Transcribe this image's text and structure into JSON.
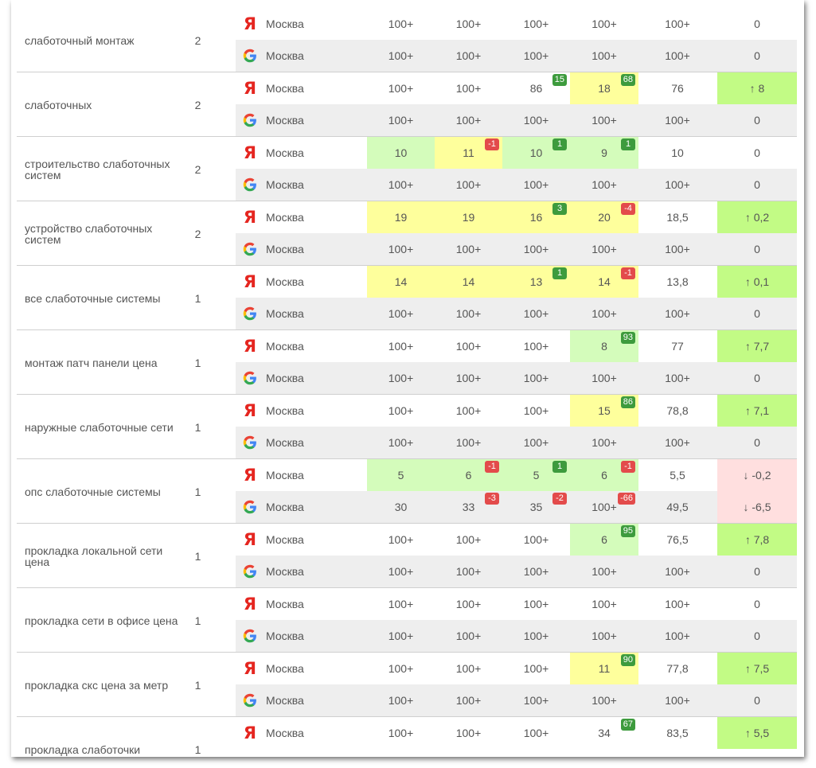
{
  "colors": {
    "yellow_cell": "#feff9c",
    "light_green_cell": "#d4fcbb",
    "green_cell": "#c2fb85",
    "pink_cell": "#ffdfdf",
    "badge_up": "#3d9b3d",
    "badge_down": "#e34b4b",
    "yandex_red": "#e52620"
  },
  "engines": {
    "yandex": {
      "icon": "yandex-logo-icon",
      "glyph": "Я"
    },
    "google": {
      "icon": "google-logo-icon"
    }
  },
  "rows": [
    {
      "keyword": "слаботочный монтаж",
      "frequency": "2",
      "yandex": {
        "region": "Москва",
        "cells": [
          {
            "value": "100+"
          },
          {
            "value": "100+"
          },
          {
            "value": "100+"
          },
          {
            "value": "100+"
          }
        ],
        "avg": "100+",
        "diff": {
          "value": "0"
        }
      },
      "google": {
        "region": "Москва",
        "cells": [
          {
            "value": "100+"
          },
          {
            "value": "100+"
          },
          {
            "value": "100+"
          },
          {
            "value": "100+"
          }
        ],
        "avg": "100+",
        "diff": {
          "value": "0"
        }
      }
    },
    {
      "keyword": "слаботочных",
      "frequency": "2",
      "yandex": {
        "region": "Москва",
        "cells": [
          {
            "value": "100+"
          },
          {
            "value": "100+"
          },
          {
            "value": "86",
            "badge": "15",
            "dir": "up"
          },
          {
            "value": "18",
            "badge": "68",
            "dir": "up",
            "color": "yellow"
          }
        ],
        "avg": "76",
        "diff": {
          "value": "↑ 8",
          "color": "dgreen"
        }
      },
      "google": {
        "region": "Москва",
        "cells": [
          {
            "value": "100+"
          },
          {
            "value": "100+"
          },
          {
            "value": "100+"
          },
          {
            "value": "100+"
          }
        ],
        "avg": "100+",
        "diff": {
          "value": "0"
        }
      }
    },
    {
      "keyword": "строительство слаботочных систем",
      "frequency": "2",
      "yandex": {
        "region": "Москва",
        "cells": [
          {
            "value": "10",
            "color": "green"
          },
          {
            "value": "11",
            "badge": "-1",
            "dir": "down",
            "color": "yellow"
          },
          {
            "value": "10",
            "badge": "1",
            "dir": "up",
            "color": "green"
          },
          {
            "value": "9",
            "badge": "1",
            "dir": "up",
            "color": "green"
          }
        ],
        "avg": "10",
        "diff": {
          "value": "0"
        }
      },
      "google": {
        "region": "Москва",
        "cells": [
          {
            "value": "100+"
          },
          {
            "value": "100+"
          },
          {
            "value": "100+"
          },
          {
            "value": "100+"
          }
        ],
        "avg": "100+",
        "diff": {
          "value": "0"
        }
      }
    },
    {
      "keyword": "устройство слаботочных систем",
      "frequency": "2",
      "yandex": {
        "region": "Москва",
        "cells": [
          {
            "value": "19",
            "color": "yellow"
          },
          {
            "value": "19",
            "color": "yellow"
          },
          {
            "value": "16",
            "badge": "3",
            "dir": "up",
            "color": "yellow"
          },
          {
            "value": "20",
            "badge": "-4",
            "dir": "down",
            "color": "yellow"
          }
        ],
        "avg": "18,5",
        "diff": {
          "value": "↑ 0,2",
          "color": "dgreen"
        }
      },
      "google": {
        "region": "Москва",
        "cells": [
          {
            "value": "100+"
          },
          {
            "value": "100+"
          },
          {
            "value": "100+"
          },
          {
            "value": "100+"
          }
        ],
        "avg": "100+",
        "diff": {
          "value": "0"
        }
      }
    },
    {
      "keyword": "все слаботочные системы",
      "frequency": "1",
      "yandex": {
        "region": "Москва",
        "cells": [
          {
            "value": "14",
            "color": "yellow"
          },
          {
            "value": "14",
            "color": "yellow"
          },
          {
            "value": "13",
            "badge": "1",
            "dir": "up",
            "color": "yellow"
          },
          {
            "value": "14",
            "badge": "-1",
            "dir": "down",
            "color": "yellow"
          }
        ],
        "avg": "13,8",
        "diff": {
          "value": "↑ 0,1",
          "color": "dgreen"
        }
      },
      "google": {
        "region": "Москва",
        "cells": [
          {
            "value": "100+"
          },
          {
            "value": "100+"
          },
          {
            "value": "100+"
          },
          {
            "value": "100+"
          }
        ],
        "avg": "100+",
        "diff": {
          "value": "0"
        }
      }
    },
    {
      "keyword": "монтаж патч панели цена",
      "frequency": "1",
      "yandex": {
        "region": "Москва",
        "cells": [
          {
            "value": "100+"
          },
          {
            "value": "100+"
          },
          {
            "value": "100+"
          },
          {
            "value": "8",
            "badge": "93",
            "dir": "up",
            "color": "green"
          }
        ],
        "avg": "77",
        "diff": {
          "value": "↑ 7,7",
          "color": "dgreen"
        }
      },
      "google": {
        "region": "Москва",
        "cells": [
          {
            "value": "100+"
          },
          {
            "value": "100+"
          },
          {
            "value": "100+"
          },
          {
            "value": "100+"
          }
        ],
        "avg": "100+",
        "diff": {
          "value": "0"
        }
      }
    },
    {
      "keyword": "наружные слаботочные сети",
      "frequency": "1",
      "yandex": {
        "region": "Москва",
        "cells": [
          {
            "value": "100+"
          },
          {
            "value": "100+"
          },
          {
            "value": "100+"
          },
          {
            "value": "15",
            "badge": "86",
            "dir": "up",
            "color": "yellow"
          }
        ],
        "avg": "78,8",
        "diff": {
          "value": "↑ 7,1",
          "color": "dgreen"
        }
      },
      "google": {
        "region": "Москва",
        "cells": [
          {
            "value": "100+"
          },
          {
            "value": "100+"
          },
          {
            "value": "100+"
          },
          {
            "value": "100+"
          }
        ],
        "avg": "100+",
        "diff": {
          "value": "0"
        }
      }
    },
    {
      "keyword": "опс слаботочные системы",
      "frequency": "1",
      "yandex": {
        "region": "Москва",
        "cells": [
          {
            "value": "5",
            "color": "green"
          },
          {
            "value": "6",
            "badge": "-1",
            "dir": "down",
            "color": "green"
          },
          {
            "value": "5",
            "badge": "1",
            "dir": "up",
            "color": "green"
          },
          {
            "value": "6",
            "badge": "-1",
            "dir": "down",
            "color": "green"
          }
        ],
        "avg": "5,5",
        "diff": {
          "value": "↓ -0,2",
          "color": "pink"
        }
      },
      "google": {
        "region": "Москва",
        "cells": [
          {
            "value": "30"
          },
          {
            "value": "33",
            "badge": "-3",
            "dir": "down"
          },
          {
            "value": "35",
            "badge": "-2",
            "dir": "down"
          },
          {
            "value": "100+",
            "badge": "-66",
            "dir": "down"
          }
        ],
        "avg": "49,5",
        "diff": {
          "value": "↓ -6,5",
          "color": "pink"
        }
      }
    },
    {
      "keyword": "прокладка локальной сети цена",
      "frequency": "1",
      "yandex": {
        "region": "Москва",
        "cells": [
          {
            "value": "100+"
          },
          {
            "value": "100+"
          },
          {
            "value": "100+"
          },
          {
            "value": "6",
            "badge": "95",
            "dir": "up",
            "color": "green"
          }
        ],
        "avg": "76,5",
        "diff": {
          "value": "↑ 7,8",
          "color": "dgreen"
        }
      },
      "google": {
        "region": "Москва",
        "cells": [
          {
            "value": "100+"
          },
          {
            "value": "100+"
          },
          {
            "value": "100+"
          },
          {
            "value": "100+"
          }
        ],
        "avg": "100+",
        "diff": {
          "value": "0"
        }
      }
    },
    {
      "keyword": "прокладка сети в офисе цена",
      "frequency": "1",
      "yandex": {
        "region": "Москва",
        "cells": [
          {
            "value": "100+"
          },
          {
            "value": "100+"
          },
          {
            "value": "100+"
          },
          {
            "value": "100+"
          }
        ],
        "avg": "100+",
        "diff": {
          "value": "0"
        }
      },
      "google": {
        "region": "Москва",
        "cells": [
          {
            "value": "100+"
          },
          {
            "value": "100+"
          },
          {
            "value": "100+"
          },
          {
            "value": "100+"
          }
        ],
        "avg": "100+",
        "diff": {
          "value": "0"
        }
      }
    },
    {
      "keyword": "прокладка скс цена за метр",
      "frequency": "1",
      "yandex": {
        "region": "Москва",
        "cells": [
          {
            "value": "100+"
          },
          {
            "value": "100+"
          },
          {
            "value": "100+"
          },
          {
            "value": "11",
            "badge": "90",
            "dir": "up",
            "color": "yellow"
          }
        ],
        "avg": "77,8",
        "diff": {
          "value": "↑ 7,5",
          "color": "dgreen"
        }
      },
      "google": {
        "region": "Москва",
        "cells": [
          {
            "value": "100+"
          },
          {
            "value": "100+"
          },
          {
            "value": "100+"
          },
          {
            "value": "100+"
          }
        ],
        "avg": "100+",
        "diff": {
          "value": "0"
        }
      }
    },
    {
      "keyword": "прокладка слаботочки",
      "frequency": "1",
      "yandex": {
        "region": "Москва",
        "cells": [
          {
            "value": "100+"
          },
          {
            "value": "100+"
          },
          {
            "value": "100+"
          },
          {
            "value": "34",
            "badge": "67",
            "dir": "up"
          }
        ],
        "avg": "83,5",
        "diff": {
          "value": "↑ 5,5",
          "color": "dgreen"
        }
      },
      "google": null
    }
  ]
}
